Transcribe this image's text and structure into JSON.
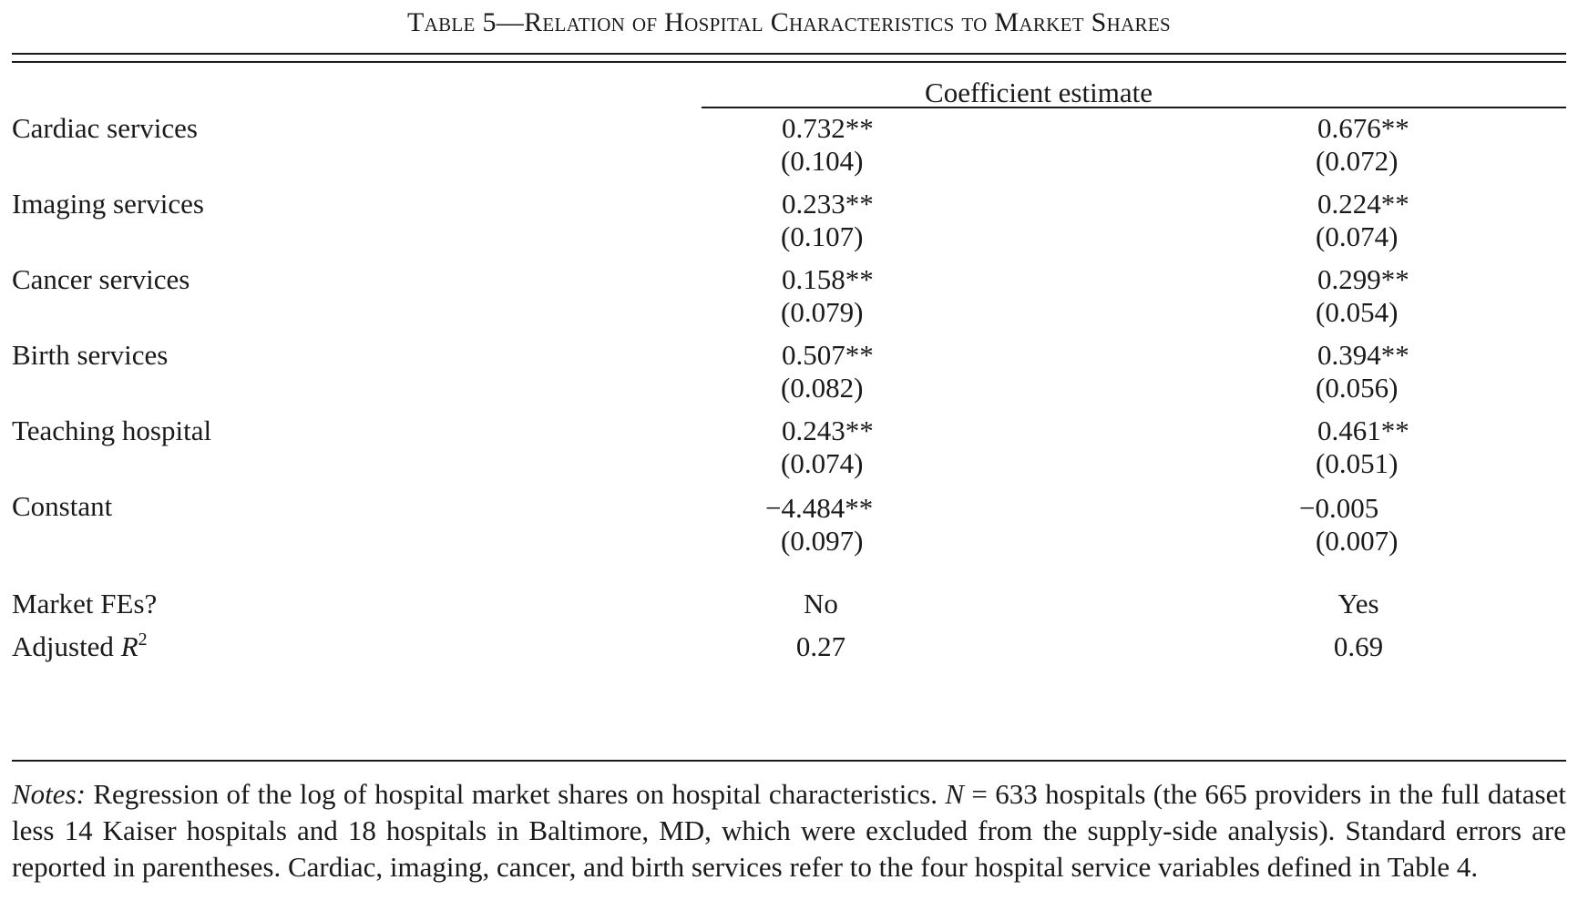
{
  "title": {
    "prefix": "Table 5—",
    "text": "Relation of Hospital Characteristics to Market Shares"
  },
  "header": "Coefficient estimate",
  "rows": [
    {
      "label": "Cardiac services",
      "col1": "0.732**",
      "col1_se": "(0.104)",
      "col2": "0.676**",
      "col2_se": "(0.072)"
    },
    {
      "label": "Imaging services",
      "col1": "0.233**",
      "col1_se": "(0.107)",
      "col2": "0.224**",
      "col2_se": "(0.074)"
    },
    {
      "label": "Cancer services",
      "col1": "0.158**",
      "col1_se": "(0.079)",
      "col2": "0.299**",
      "col2_se": "(0.054)"
    },
    {
      "label": "Birth services",
      "col1": "0.507**",
      "col1_se": "(0.082)",
      "col2": "0.394**",
      "col2_se": "(0.056)"
    },
    {
      "label": "Teaching hospital",
      "col1": "0.243**",
      "col1_se": "(0.074)",
      "col2": "0.461**",
      "col2_se": "(0.051)"
    },
    {
      "label": "Constant",
      "col1": "−4.484**",
      "col1_se": "(0.097)",
      "col2": "−0.005",
      "col2_se": "(0.007)"
    }
  ],
  "market_fes": {
    "label": "Market FEs?",
    "col1": "No",
    "col2": "Yes"
  },
  "adj_r2": {
    "label_text": "Adjusted ",
    "label_var": "R",
    "label_sup": "2",
    "col1": "0.27",
    "col2": "0.69"
  },
  "notes": {
    "lead": "Notes:",
    "text_1": " Regression of the log of hospital market shares on hospital characteristics. ",
    "n_var": "N",
    "text_2": " = 633 hospitals (the 665 providers in the full dataset less 14 Kaiser hospitals and 18 hospitals in Baltimore, MD, which were excluded from the supply-side analysis). Standard errors are reported in parentheses. Cardiac, imaging, cancer, and birth services refer to the four hospital service variables defined in Table 4."
  }
}
